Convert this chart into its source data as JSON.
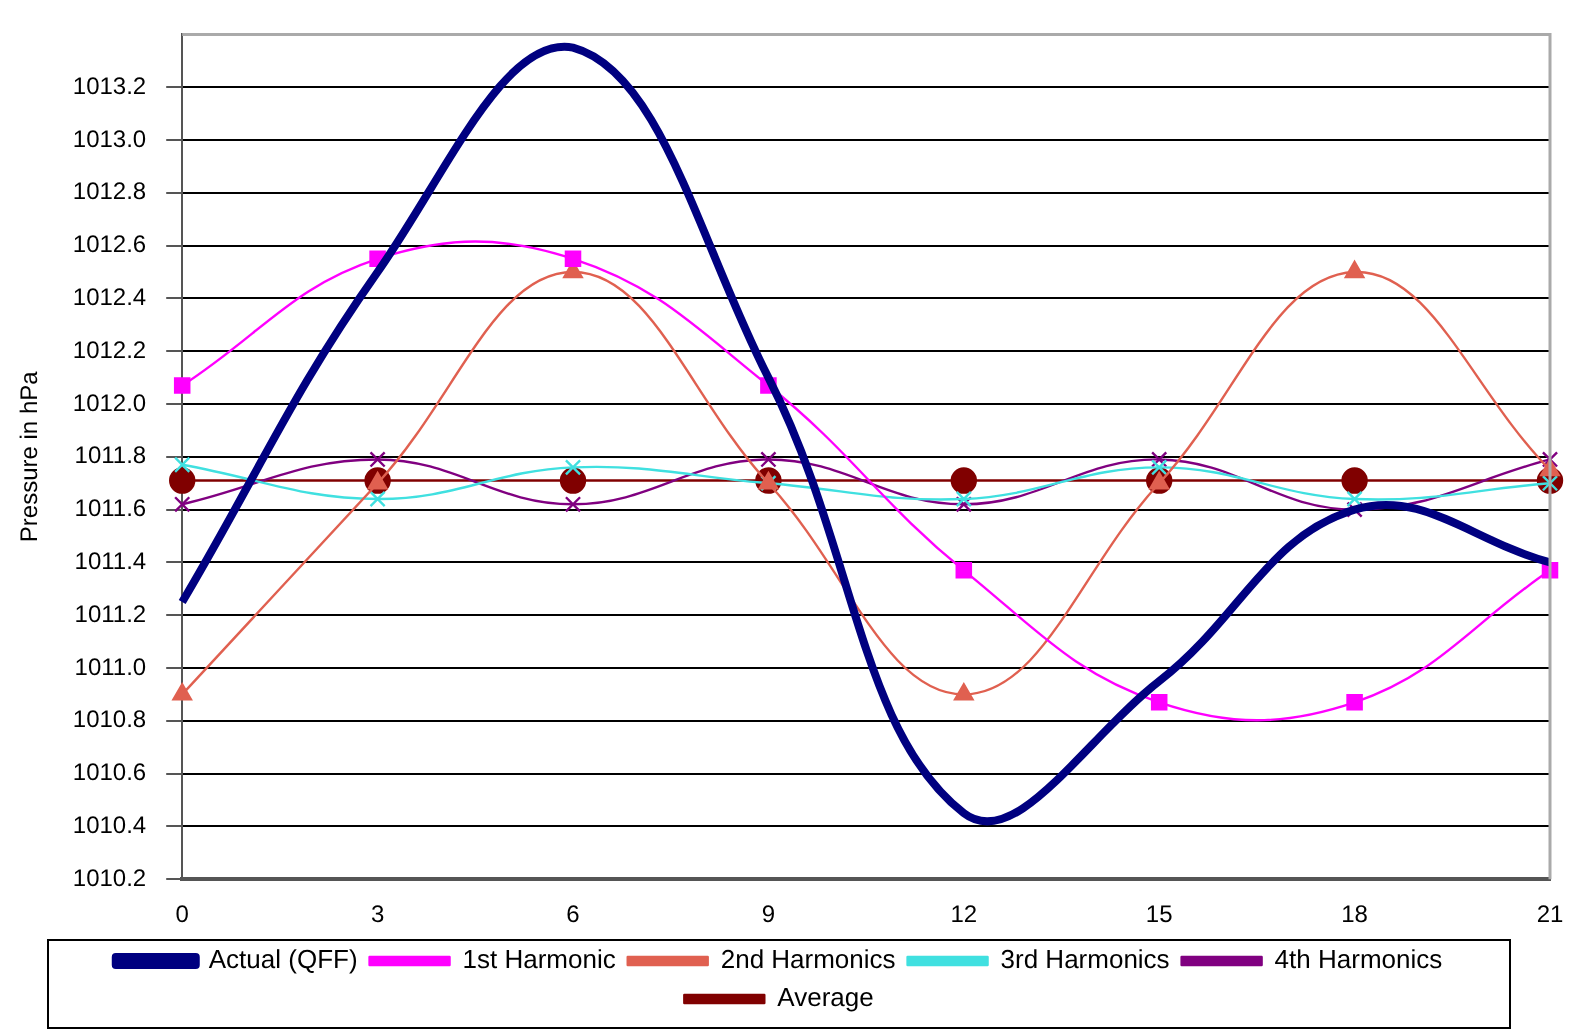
{
  "chart_data": {
    "type": "line",
    "ylabel": "Pressure in hPa",
    "x": [
      0,
      3,
      6,
      9,
      12,
      15,
      18,
      21
    ],
    "xlim": [
      0,
      21
    ],
    "xticks": [
      0,
      3,
      6,
      9,
      12,
      15,
      18,
      21
    ],
    "ylim": [
      1010.2,
      1013.4
    ],
    "yticks": [
      1010.2,
      1010.4,
      1010.6,
      1010.8,
      {
        "value": 1011,
        "label": "1011.0"
      },
      1011.2,
      1011.4,
      1011.6,
      1011.8,
      {
        "value": 1012,
        "label": "1012.0"
      },
      1012.2,
      1012.4,
      1012.6,
      1012.8,
      {
        "value": 1013,
        "label": "1013.0"
      },
      1013.2
    ],
    "grid": "y",
    "legend": "bottom",
    "series": [
      {
        "name": "Actual (QFF)",
        "color": "#000080",
        "marker": "none",
        "values": [
          1011.25,
          1012.5,
          1013.35,
          1012.1,
          1010.45,
          1010.95,
          1011.6,
          1011.4
        ]
      },
      {
        "name": "1st Harmonic",
        "color": "#ff00ff",
        "marker": "square",
        "values": [
          1012.07,
          1012.55,
          1012.55,
          1012.07,
          1011.37,
          1010.87,
          1010.87,
          1011.37
        ]
      },
      {
        "name": "2nd Harmonics",
        "color": "#e06050",
        "marker": "triangle",
        "values": [
          1010.9,
          1011.7,
          1012.5,
          1011.7,
          1010.9,
          1011.7,
          1012.5,
          1011.75
        ]
      },
      {
        "name": "3rd Harmonics",
        "color": "#40e0e0",
        "marker": "cross",
        "values": [
          1011.77,
          1011.64,
          1011.76,
          1011.7,
          1011.64,
          1011.76,
          1011.64,
          1011.7
        ]
      },
      {
        "name": "4th Harmonics",
        "color": "#800080",
        "marker": "cross",
        "values": [
          1011.62,
          1011.79,
          1011.62,
          1011.79,
          1011.62,
          1011.79,
          1011.6,
          1011.79
        ]
      },
      {
        "name": "Average",
        "color": "#800000",
        "marker": "circle",
        "values": [
          1011.71,
          1011.71,
          1011.71,
          1011.71,
          1011.71,
          1011.71,
          1011.71,
          1011.71
        ]
      }
    ]
  }
}
